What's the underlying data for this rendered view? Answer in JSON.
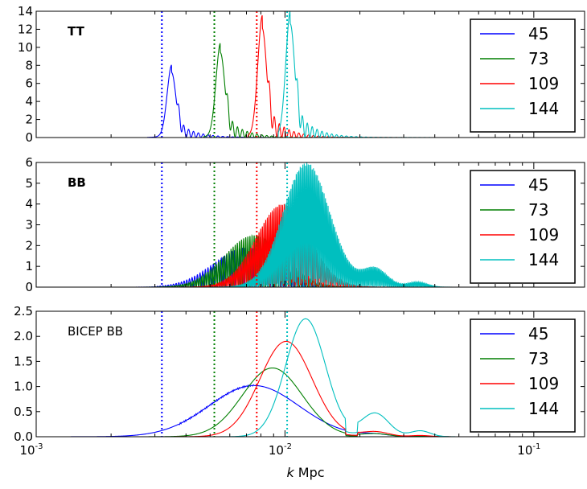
{
  "figure": {
    "xlabel_italic": "k",
    "xlabel_rest": " Mpc",
    "xaxis": {
      "scale": "log",
      "range": [
        0.001,
        0.16
      ],
      "ticks": [
        {
          "value": 0.001,
          "base": "10",
          "exp": "-3"
        },
        {
          "value": 0.01,
          "base": "10",
          "exp": "-2"
        },
        {
          "value": 0.1,
          "base": "10",
          "exp": "-1"
        }
      ]
    }
  },
  "chart_data": [
    {
      "type": "line",
      "panel_label": "TT",
      "panel_label_bold": true,
      "ylim": [
        0,
        14
      ],
      "yticks": [
        "0",
        "2",
        "4",
        "6",
        "8",
        "10",
        "12",
        "14"
      ],
      "legend_placement": "top-right",
      "vertical_lines_x": [
        0.0032,
        0.0052,
        0.0077,
        0.0102
      ],
      "series": [
        {
          "name": "45",
          "color": "#0000ff",
          "peak_x": 0.0035,
          "peak_y": 7.2,
          "start_x": 0.0028
        },
        {
          "name": "73",
          "color": "#007f00",
          "peak_x": 0.0055,
          "peak_y": 9.4,
          "start_x": 0.0047
        },
        {
          "name": "109",
          "color": "#ff0000",
          "peak_x": 0.0081,
          "peak_y": 12.1,
          "start_x": 0.0071
        },
        {
          "name": "144",
          "color": "#00bfbf",
          "peak_x": 0.0105,
          "peak_y": 12.6,
          "start_x": 0.0094
        }
      ]
    },
    {
      "type": "line",
      "panel_label": "BB",
      "panel_label_bold": true,
      "ylim": [
        0,
        6
      ],
      "yticks": [
        "0",
        "1",
        "2",
        "3",
        "4",
        "5",
        "6"
      ],
      "legend_placement": "top-right",
      "vertical_lines_x": [
        0.0032,
        0.0052,
        0.0077,
        0.0102
      ],
      "series": [
        {
          "name": "45",
          "color": "#0000ff",
          "peak_x": 0.007,
          "peak_y": 1.9
        },
        {
          "name": "73",
          "color": "#007f00",
          "peak_x": 0.0075,
          "peak_y": 2.5
        },
        {
          "name": "109",
          "color": "#ff0000",
          "peak_x": 0.0098,
          "peak_y": 4.0
        },
        {
          "name": "144",
          "color": "#00bfbf",
          "peak_x": 0.0122,
          "peak_y": 6.0
        }
      ]
    },
    {
      "type": "line",
      "panel_label": "BICEP BB",
      "panel_label_bold": false,
      "ylim": [
        0,
        2.5
      ],
      "yticks": [
        "0.0",
        "0.5",
        "1.0",
        "1.5",
        "2.0",
        "2.5"
      ],
      "legend_placement": "top-right",
      "vertical_lines_x": [
        0.0032,
        0.0052,
        0.0077,
        0.0102
      ],
      "series": [
        {
          "name": "45",
          "color": "#0000ff",
          "peak_x": 0.0075,
          "peak_y": 1.02
        },
        {
          "name": "73",
          "color": "#007f00",
          "peak_x": 0.0089,
          "peak_y": 1.37
        },
        {
          "name": "109",
          "color": "#ff0000",
          "peak_x": 0.0101,
          "peak_y": 1.9
        },
        {
          "name": "144",
          "color": "#00bfbf",
          "peak_x": 0.0121,
          "peak_y": 2.35
        }
      ]
    }
  ]
}
